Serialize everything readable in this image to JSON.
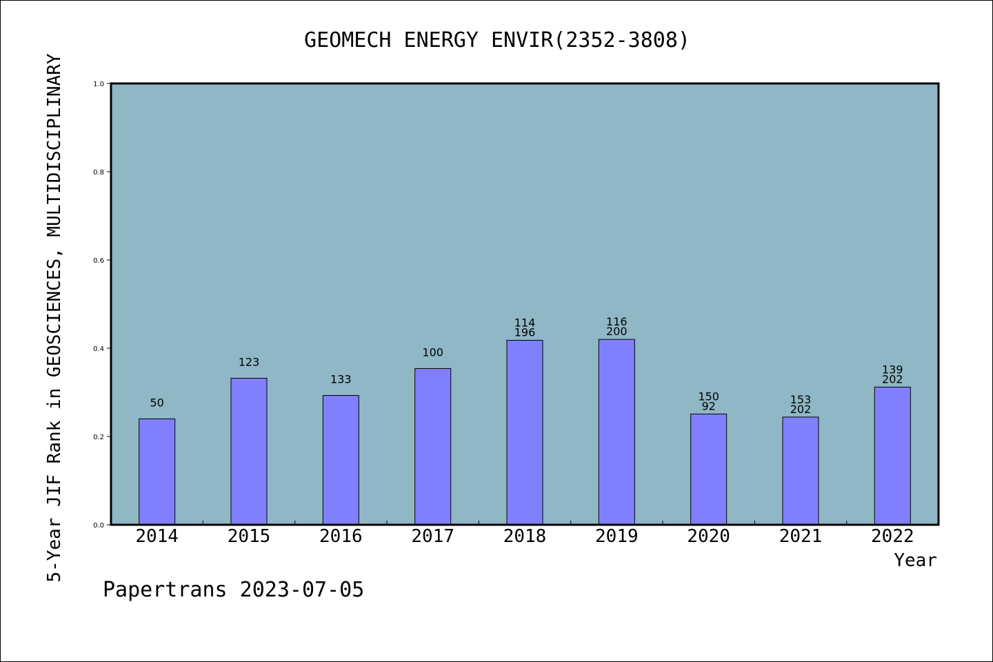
{
  "chart_data": {
    "type": "bar",
    "title": "GEOMECH ENERGY ENVIR(2352-3808)",
    "xlabel": "Year",
    "ylabel": "5-Year JIF Rank in GEOSCIENCES, MULTIDISCIPLINARY",
    "ylim": [
      0,
      1.0
    ],
    "yticks": [
      "0.0",
      "0.2",
      "0.4",
      "0.6",
      "0.8",
      "1.0"
    ],
    "categories": [
      "2014",
      "2015",
      "2016",
      "2017",
      "2018",
      "2019",
      "2020",
      "2021",
      "2022"
    ],
    "values": [
      0.24,
      0.332,
      0.293,
      0.354,
      0.418,
      0.42,
      0.251,
      0.244,
      0.312
    ],
    "bar_labels": [
      [
        "50"
      ],
      [
        "123"
      ],
      [
        "133"
      ],
      [
        "100"
      ],
      [
        "114",
        "196"
      ],
      [
        "116",
        "200"
      ],
      [
        "150",
        "92"
      ],
      [
        "153",
        "202"
      ],
      [
        "139",
        "202"
      ]
    ],
    "grid": false,
    "colors": {
      "plot_bg": "#8fb7c5",
      "bar": "#8080ff",
      "bar_edge": "#000000"
    }
  },
  "footer": {
    "credit": "Papertrans 2023-07-05"
  }
}
